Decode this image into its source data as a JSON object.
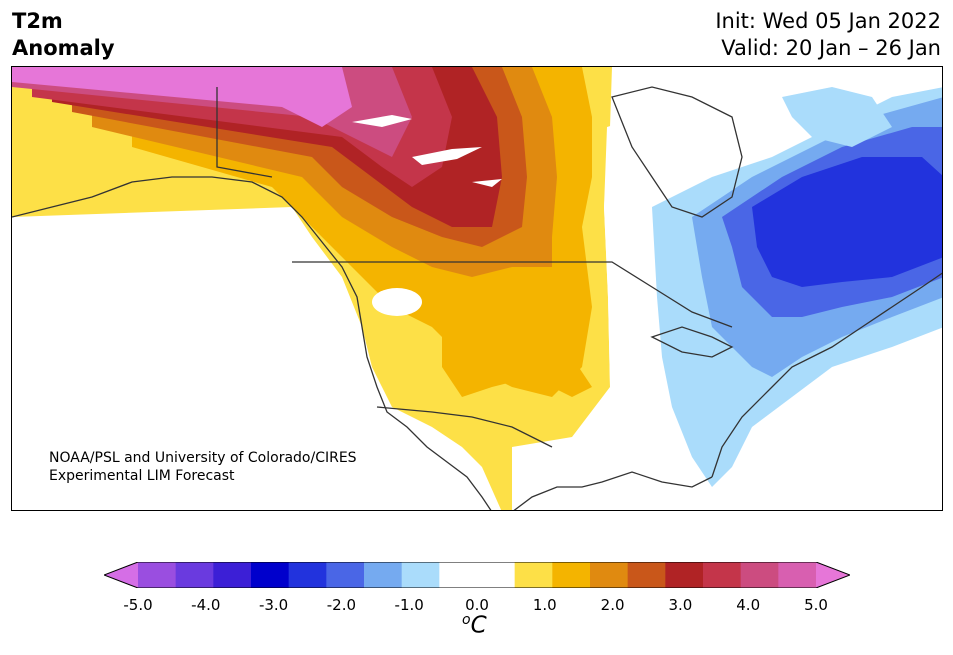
{
  "header": {
    "title_line1": "T2m",
    "title_line2": "Anomaly",
    "init": "Init: Wed 05 Jan 2022",
    "valid": "Valid: 20 Jan – 26 Jan"
  },
  "credit": {
    "line1": "NOAA/PSL and University of Colorado/CIRES",
    "line2": "Experimental LIM Forecast"
  },
  "colorbar": {
    "unit_base": "C",
    "unit_sup": "o",
    "tick_labels": [
      "-5.0",
      "-4.0",
      "-3.0",
      "-2.0",
      "-1.0",
      "0.0",
      "1.0",
      "2.0",
      "3.0",
      "4.0",
      "5.0"
    ],
    "colors": [
      "#d56ee6",
      "#9a4ee0",
      "#6a3adf",
      "#3c1fd6",
      "#0000cc",
      "#2233dd",
      "#4a66e6",
      "#75aaf0",
      "#aadcfb",
      "#ffffff",
      "#ffffff",
      "#fde047",
      "#f4b400",
      "#e08a10",
      "#c9571a",
      "#b02325",
      "#c4354a",
      "#cc4c80",
      "#d85fb0",
      "#e676d8"
    ]
  },
  "map": {
    "land_color": "#ffffff",
    "outline_color": "#333333"
  }
}
